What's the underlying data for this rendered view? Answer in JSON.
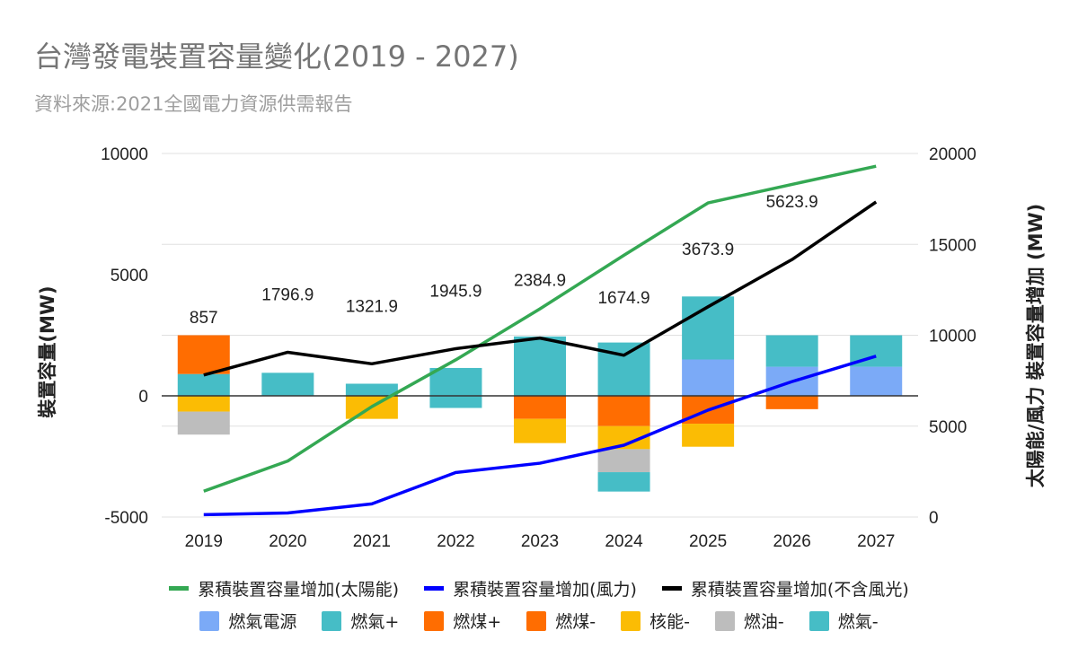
{
  "chart_data": {
    "type": "bar",
    "title": "台灣發電裝置容量變化(2019 - 2027)",
    "subtitle": "資料來源:2021全國電力資源供需報告",
    "ylabel_left": "裝置容量(MW)",
    "ylabel_right": "太陽能/風力 裝置容量增加 (MW)",
    "categories": [
      "2019",
      "2020",
      "2021",
      "2022",
      "2023",
      "2024",
      "2025",
      "2026",
      "2027"
    ],
    "left_axis": {
      "range": [
        -5000,
        10000
      ],
      "ticks": [
        "10000",
        "5000",
        "0",
        "-5000"
      ]
    },
    "right_axis": {
      "range": [
        0,
        20000
      ],
      "ticks": [
        "20000",
        "15000",
        "10000",
        "5000",
        "0"
      ]
    },
    "bar_series": [
      {
        "name": "燃氣電源",
        "color": "#7baaf7",
        "values": [
          0,
          0,
          0,
          0,
          0,
          0,
          1500,
          1200,
          1200
        ]
      },
      {
        "name": "燃氣+",
        "color": "#46bdc6",
        "values": [
          900,
          950,
          500,
          1150,
          2450,
          2200,
          2600,
          1300,
          1300
        ]
      },
      {
        "name": "燃煤+",
        "color": "#ff6d01",
        "values": [
          1600,
          0,
          0,
          0,
          0,
          0,
          0,
          0,
          0
        ]
      },
      {
        "name": "燃煤-",
        "color": "#ff6d01",
        "values": [
          0,
          0,
          0,
          0,
          -950,
          -1250,
          -1150,
          -550,
          0
        ]
      },
      {
        "name": "核能-",
        "color": "#fbbc04",
        "values": [
          -650,
          0,
          -950,
          0,
          -1000,
          -950,
          -950,
          0,
          0
        ]
      },
      {
        "name": "燃油-",
        "color": "#bdbdbd",
        "values": [
          -950,
          0,
          0,
          0,
          0,
          -950,
          0,
          0,
          0
        ]
      },
      {
        "name": "燃氣-",
        "color": "#46bdc6",
        "values": [
          0,
          0,
          0,
          -500,
          0,
          -800,
          0,
          0,
          0
        ]
      }
    ],
    "line_series": [
      {
        "name": "累積裝置容量增加(太陽能)",
        "color": "#34a853",
        "axis": "right",
        "values": [
          1420,
          3080,
          6070,
          8650,
          11450,
          14400,
          17280,
          18300,
          19300
        ]
      },
      {
        "name": "累積裝置容量增加(風力)",
        "color": "#0000ff",
        "axis": "right",
        "values": [
          130,
          220,
          720,
          2450,
          2960,
          3950,
          5880,
          7450,
          8850
        ]
      },
      {
        "name": "累積裝置容量增加(不含風光)",
        "color": "#000000",
        "axis": "left",
        "values": [
          857,
          1796.9,
          1321.9,
          1945.9,
          2384.9,
          1674.9,
          3673.9,
          5623.9,
          8000
        ]
      }
    ],
    "data_labels": [
      "857",
      "1796.9",
      "1321.9",
      "1945.9",
      "2384.9",
      "1674.9",
      "3673.9",
      "5623.9",
      ""
    ]
  }
}
